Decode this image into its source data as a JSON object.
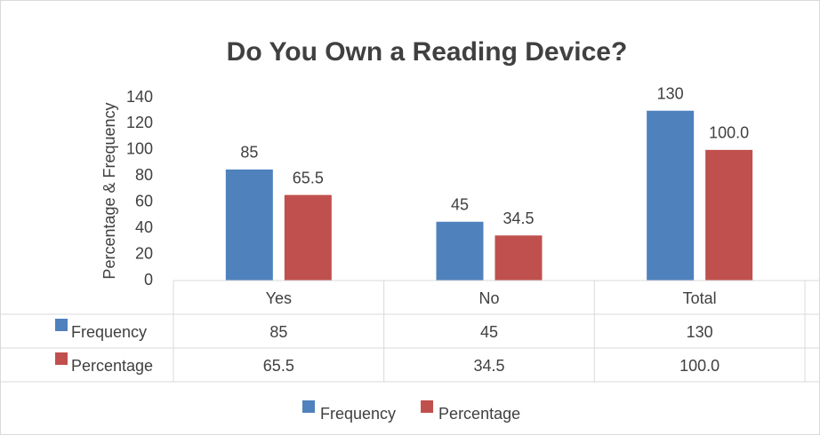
{
  "chart_data": {
    "type": "bar",
    "title": "Do You Own a Reading Device?",
    "y_label": "Percentage & Frequency",
    "categories": [
      "Yes",
      "No",
      "Total"
    ],
    "series": [
      {
        "name": "Frequency",
        "color": "#4f81bd",
        "values": [
          85,
          45,
          130
        ]
      },
      {
        "name": "Percentage",
        "color": "#c0504d",
        "values": [
          65.5,
          34.5,
          100.0
        ],
        "value_labels": [
          "65.5",
          "34.5",
          "100.0"
        ]
      }
    ],
    "ylim": [
      0,
      140
    ],
    "yticks": [
      0,
      20,
      40,
      60,
      80,
      100,
      120,
      140
    ],
    "grid": false,
    "legend": "bottom",
    "data_table": true
  }
}
